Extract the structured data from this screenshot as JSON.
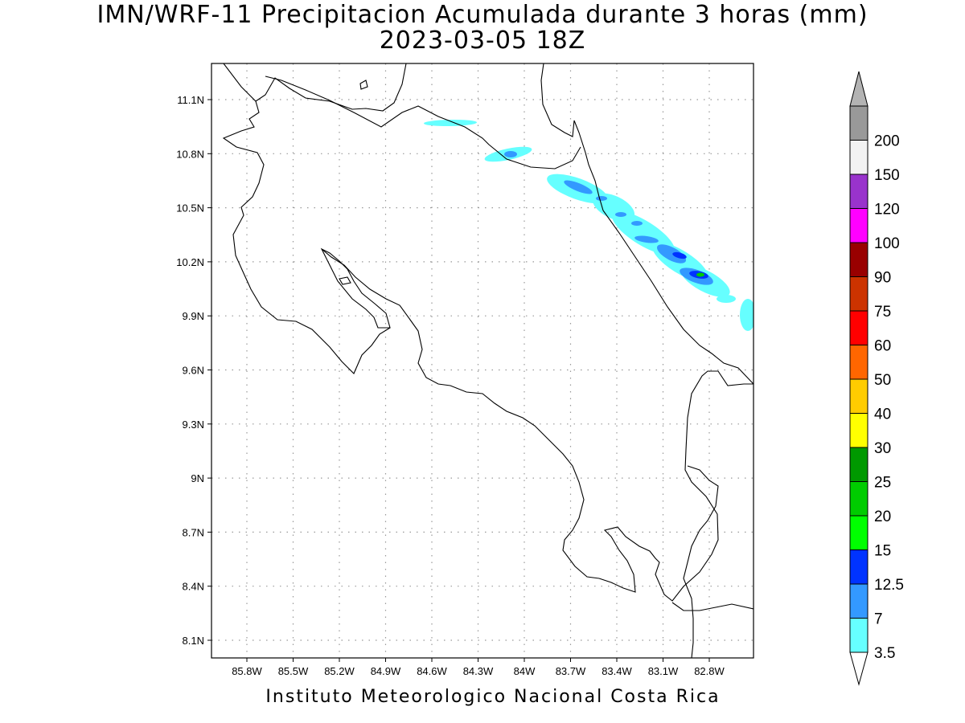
{
  "header": {
    "title": "IMN/WRF-11 Precipitacion Acumulada durante 3 horas (mm)",
    "subtitle": "2023-03-05 18Z"
  },
  "footer": {
    "credit": "Instituto Meteorologico Nacional Costa Rica"
  },
  "map": {
    "lon_labels": [
      "85.8W",
      "85.5W",
      "85.2W",
      "84.9W",
      "84.6W",
      "84.3W",
      "84W",
      "83.7W",
      "83.4W",
      "83.1W",
      "82.8W"
    ],
    "lat_labels": [
      "11.1N",
      "10.8N",
      "10.5N",
      "10.2N",
      "9.9N",
      "9.6N",
      "9.3N",
      "9N",
      "8.7N",
      "8.4N",
      "8.1N"
    ],
    "coast_color": "#000000",
    "grid": "dotted"
  },
  "colorbar": {
    "levels": [
      "3.5",
      "7",
      "12.5",
      "15",
      "20",
      "25",
      "30",
      "40",
      "50",
      "60",
      "75",
      "90",
      "100",
      "120",
      "150",
      "200"
    ],
    "colors": [
      "#66ffff",
      "#3399ff",
      "#0033ff",
      "#00ff00",
      "#00cc00",
      "#009900",
      "#ffff00",
      "#ffcc00",
      "#ff6600",
      "#ff0000",
      "#cc3300",
      "#990000",
      "#ff00ff",
      "#9933cc",
      "#f2f2f2",
      "#999999"
    ],
    "under_color": "#ffffff",
    "over_color": "#b3b3b3"
  },
  "precip_colors": {
    "light": "#66ffff",
    "medium": "#3399ff",
    "heavy": "#0033ff",
    "peak": "#00cc00"
  }
}
